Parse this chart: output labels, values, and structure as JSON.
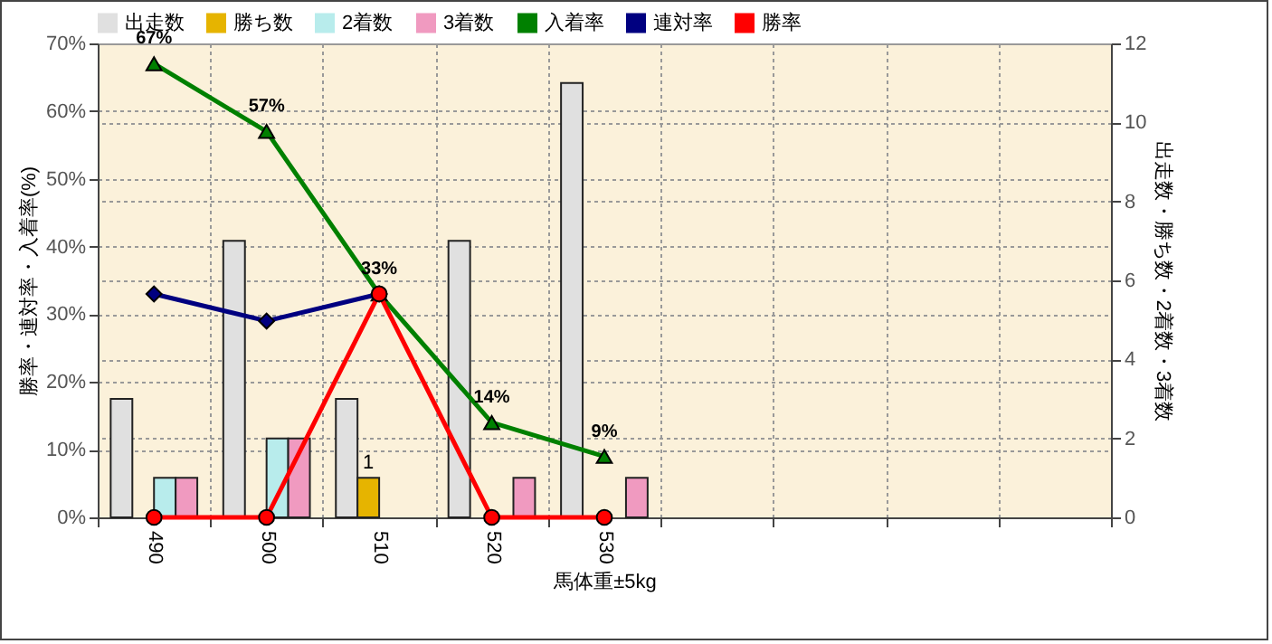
{
  "chart_data": {
    "type": "bar",
    "xlabel": "馬体重±5kg",
    "ylabel": "勝率・連対率・入着率(%)",
    "y2label": "出走数・勝ち数・2着数・3着数",
    "categories": [
      "490",
      "500",
      "510",
      "520",
      "530",
      null,
      null,
      null,
      null
    ],
    "ylim": [
      0,
      70
    ],
    "yticks": [
      {
        "value": 0,
        "label": "0%"
      },
      {
        "value": 10,
        "label": "10%"
      },
      {
        "value": 20,
        "label": "20%"
      },
      {
        "value": 30,
        "label": "30%"
      },
      {
        "value": 40,
        "label": "40%"
      },
      {
        "value": 50,
        "label": "50%"
      },
      {
        "value": 60,
        "label": "60%"
      },
      {
        "value": 70,
        "label": "70%"
      }
    ],
    "y2lim": [
      0,
      12
    ],
    "y2ticks": [
      0,
      2,
      4,
      6,
      8,
      10,
      12
    ],
    "grid": true,
    "legend": "top",
    "series": [
      {
        "name": "出走数",
        "axis": "y2",
        "color": "#e0e0e0",
        "values": [
          3,
          7,
          3,
          7,
          11,
          null,
          null,
          null,
          null
        ]
      },
      {
        "name": "勝ち数",
        "axis": "y2",
        "color": "#e6b400",
        "values": [
          0,
          0,
          1,
          0,
          0,
          null,
          null,
          null,
          null
        ],
        "value_labels": [
          null,
          null,
          "1",
          null,
          null,
          null,
          null,
          null,
          null
        ]
      },
      {
        "name": "2着数",
        "axis": "y2",
        "color": "#b8ecec",
        "values": [
          1,
          2,
          0,
          0,
          0,
          null,
          null,
          null,
          null
        ]
      },
      {
        "name": "3着数",
        "axis": "y2",
        "color": "#f09ac0",
        "values": [
          1,
          2,
          0,
          1,
          1,
          null,
          null,
          null,
          null
        ]
      },
      {
        "name": "入着率",
        "type": "line",
        "axis": "y",
        "color": "#008000",
        "marker": "triangle",
        "values": [
          67,
          57,
          33,
          14,
          9,
          null,
          null,
          null,
          null
        ],
        "value_labels": [
          "67%",
          "57%",
          "33%",
          "14%",
          "9%",
          null,
          null,
          null,
          null
        ]
      },
      {
        "name": "連対率",
        "type": "line",
        "axis": "y",
        "color": "#000080",
        "marker": "diamond",
        "values": [
          33,
          29,
          33,
          null,
          null,
          null,
          null,
          null,
          null
        ]
      },
      {
        "name": "勝率",
        "type": "line",
        "axis": "y",
        "color": "#ff0000",
        "marker": "circle",
        "values": [
          0,
          0,
          33,
          0,
          0,
          null,
          null,
          null,
          null
        ]
      }
    ]
  }
}
